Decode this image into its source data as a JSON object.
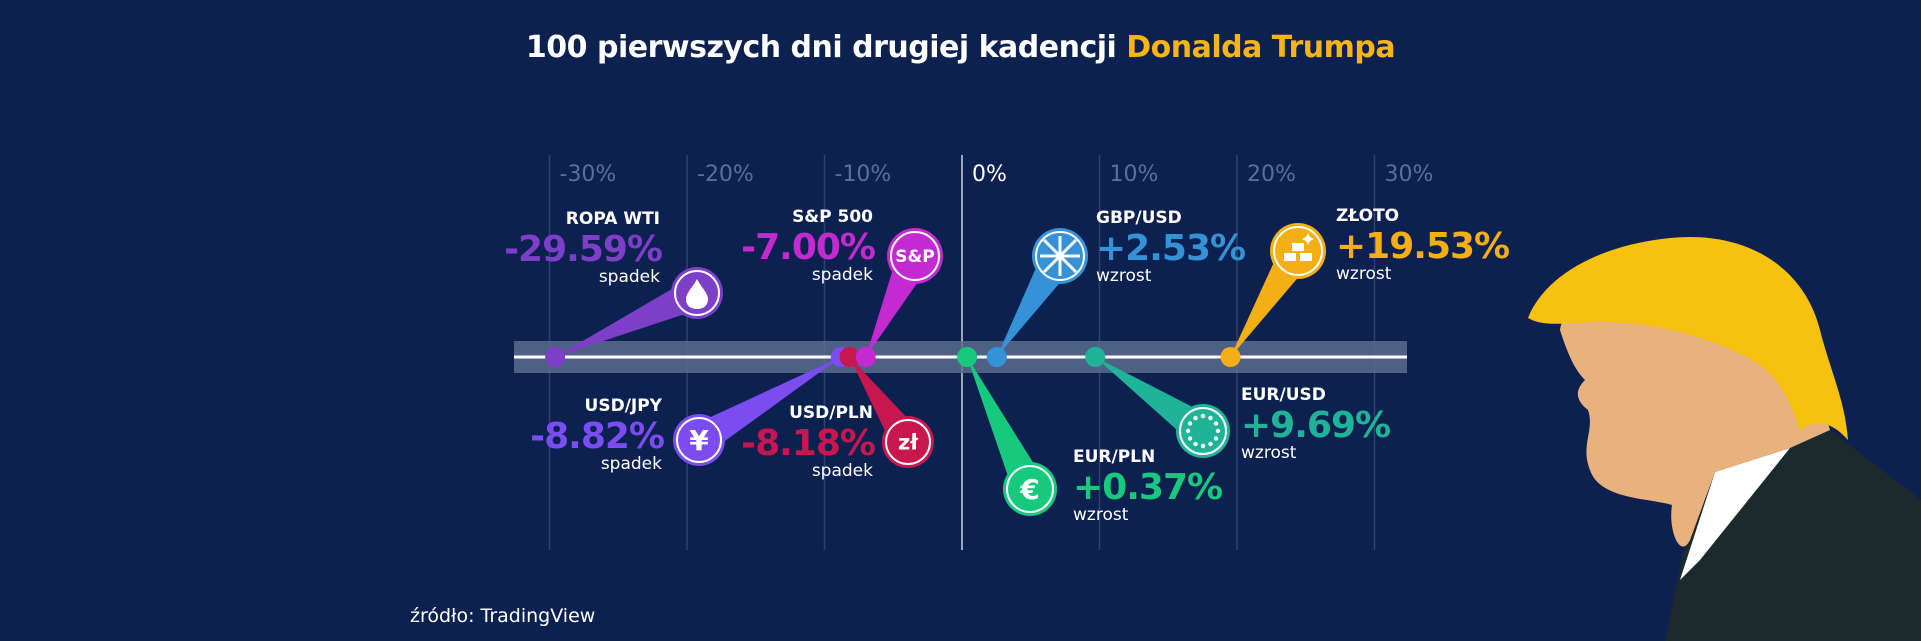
{
  "title": {
    "main": "100 pierwszych dni drugiej kadencji ",
    "highlight": "Donalda Trumpa"
  },
  "source": "źródło: TradingView",
  "colors": {
    "background": "#0d2150",
    "highlight": "#f7b417",
    "grid": "#2e4270",
    "axis_band": "#5b6c8e"
  },
  "chart_data": {
    "type": "scatter",
    "xlim": [
      -30,
      30
    ],
    "x_ticks": [
      "-30%",
      "-20%",
      "-10%",
      "0%",
      "10%",
      "20%",
      "30%"
    ],
    "x_tick_values": [
      -30,
      -20,
      -10,
      0,
      10,
      20,
      30
    ],
    "grid": true,
    "points": [
      {
        "name": "ROPA WTI",
        "value": -29.59,
        "label": "-29.59%",
        "direction": "spadek",
        "color": "#7d3fc8",
        "icon": "oil-drop-icon"
      },
      {
        "name": "USD/JPY",
        "value": -8.82,
        "label": "-8.82%",
        "direction": "spadek",
        "color": "#7b4cf0",
        "icon": "yen-icon",
        "icon_text": "¥"
      },
      {
        "name": "USD/PLN",
        "value": -8.18,
        "label": "-8.18%",
        "direction": "spadek",
        "color": "#c8174f",
        "icon": "zloty-icon",
        "icon_text": "zł"
      },
      {
        "name": "S&P 500",
        "value": -7.0,
        "label": "-7.00%",
        "direction": "spadek",
        "color": "#c42ad1",
        "icon": "sp-icon",
        "icon_text": "S&P"
      },
      {
        "name": "EUR/PLN",
        "value": 0.37,
        "label": "+0.37%",
        "direction": "wzrost",
        "color": "#17c97c",
        "icon": "euro-icon",
        "icon_text": "€"
      },
      {
        "name": "GBP/USD",
        "value": 2.53,
        "label": "+2.53%",
        "direction": "wzrost",
        "color": "#3592d6",
        "icon": "uk-flag-icon"
      },
      {
        "name": "EUR/USD",
        "value": 9.69,
        "label": "+9.69%",
        "direction": "wzrost",
        "color": "#1fb398",
        "icon": "eu-stars-icon"
      },
      {
        "name": "ZŁOTO",
        "value": 19.53,
        "label": "+19.53%",
        "direction": "wzrost",
        "color": "#f4af15",
        "icon": "gold-bars-icon"
      }
    ]
  }
}
